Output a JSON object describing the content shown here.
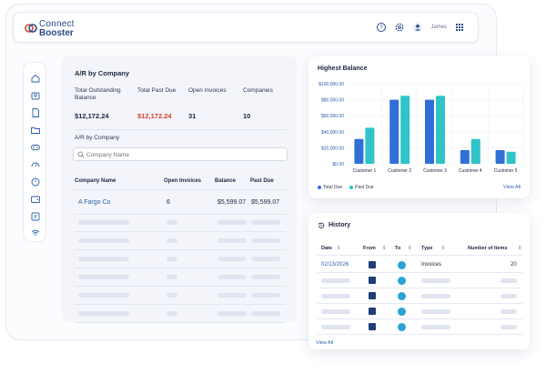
{
  "app": {
    "logo_line1": "Connect",
    "logo_line2": "Booster",
    "username": "James",
    "colors": {
      "brand": "#2a4a8a",
      "accent": "#2a5fa8",
      "danger": "#d8402a"
    },
    "icons": [
      "help-icon",
      "settings-icon",
      "user-icon",
      "grid-menu-icon"
    ]
  },
  "sidebar": {
    "items": [
      "home-icon",
      "people-icon",
      "document-icon",
      "folder-icon",
      "badge-icon",
      "clock-icon",
      "gauge-icon",
      "wallet-icon",
      "report-icon",
      "wifi-icon"
    ]
  },
  "ar": {
    "title": "A/R by Company",
    "kpis": [
      {
        "label": "Total Outstanding Balance",
        "value": "$12,172.24"
      },
      {
        "label": "Total Past Due",
        "value": "$12,172.24"
      },
      {
        "label": "Open Invoices",
        "value": "31"
      },
      {
        "label": "Companies",
        "value": "10"
      }
    ],
    "subtitle": "A/R by Company",
    "search_placeholder": "Company Name",
    "columns": [
      "Company Name",
      "Open Invoices",
      "Balance",
      "Past Due"
    ],
    "rows": [
      {
        "company": "A Fargo Co",
        "open_invoices": "6",
        "balance": "$5,599.07",
        "past_due": "$5,599.07"
      }
    ]
  },
  "chart": {
    "title": "Highest Balance",
    "view_all": "View All"
  },
  "chart_data": {
    "type": "bar",
    "title": "Highest Balance",
    "categories": [
      "Customer 1",
      "Customer 2",
      "Customer 3",
      "Customer 4",
      "Customer 5"
    ],
    "series": [
      {
        "name": "Total Due",
        "color": "#2f6fd8",
        "values": [
          31000,
          80000,
          80000,
          17000,
          17000
        ]
      },
      {
        "name": "Past Due",
        "color": "#2ec4c8",
        "values": [
          45000,
          85000,
          85000,
          31000,
          15000
        ]
      }
    ],
    "y_ticks": [
      "$0.00",
      "$20,000.00",
      "$40,000.00",
      "$60,000.00",
      "$80,000.00",
      "$100,000.00"
    ],
    "ylim": [
      0,
      100000
    ],
    "grid": true,
    "legend": "bottom-left"
  },
  "history": {
    "title": "History",
    "columns": [
      "Date",
      "From",
      "To",
      "Type",
      "Number of Items"
    ],
    "rows": [
      {
        "date": "02/13/2026",
        "type": "Invoices",
        "items": "20"
      }
    ],
    "view_all": "View All"
  }
}
